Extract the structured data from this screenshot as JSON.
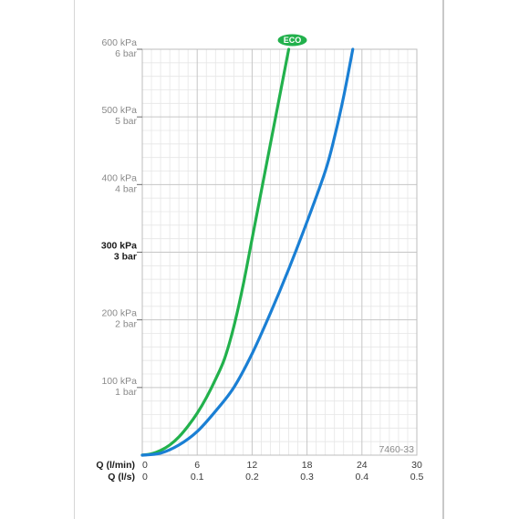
{
  "chart_data": {
    "type": "line",
    "x_axes": [
      {
        "name": "Q (l/min)",
        "ticks": [
          "0",
          "6",
          "12",
          "18",
          "24",
          "30"
        ],
        "range": [
          0,
          30
        ]
      },
      {
        "name": "Q (l/s)",
        "ticks": [
          "0",
          "0.1",
          "0.2",
          "0.3",
          "0.4",
          "0.5"
        ],
        "range": [
          0,
          0.5
        ]
      }
    ],
    "y_axis": {
      "unit": "kPa",
      "range": [
        0,
        600
      ],
      "ticks": [
        {
          "value": 100,
          "kpa": "100 kPa",
          "bar": "1 bar",
          "bold": false
        },
        {
          "value": 200,
          "kpa": "200 kPa",
          "bar": "2 bar",
          "bold": false
        },
        {
          "value": 300,
          "kpa": "300 kPa",
          "bar": "3 bar",
          "bold": true
        },
        {
          "value": 400,
          "kpa": "400 kPa",
          "bar": "4 bar",
          "bold": false
        },
        {
          "value": 500,
          "kpa": "500 kPa",
          "bar": "5 bar",
          "bold": false
        },
        {
          "value": 600,
          "kpa": "600 kPa",
          "bar": "6 bar",
          "bold": false
        }
      ]
    },
    "grid": true,
    "series": [
      {
        "label": "ECO",
        "color": "#22b14c",
        "points": [
          [
            0,
            0
          ],
          [
            1,
            2
          ],
          [
            2,
            7
          ],
          [
            3,
            15
          ],
          [
            4,
            27
          ],
          [
            5,
            43
          ],
          [
            6,
            62
          ],
          [
            7,
            85
          ],
          [
            8,
            112
          ],
          [
            9,
            143
          ],
          [
            10,
            190
          ],
          [
            11,
            250
          ],
          [
            12,
            320
          ],
          [
            13,
            390
          ],
          [
            14,
            460
          ],
          [
            15,
            530
          ],
          [
            16,
            600
          ]
        ]
      },
      {
        "color": "#1a7fd4",
        "points": [
          [
            0,
            0
          ],
          [
            2,
            3
          ],
          [
            4,
            15
          ],
          [
            6,
            35
          ],
          [
            8,
            65
          ],
          [
            10,
            100
          ],
          [
            12,
            150
          ],
          [
            14,
            210
          ],
          [
            16,
            275
          ],
          [
            18,
            345
          ],
          [
            20,
            420
          ],
          [
            21,
            470
          ],
          [
            22,
            530
          ],
          [
            23,
            600
          ]
        ]
      }
    ],
    "annotation": "7460-33"
  }
}
